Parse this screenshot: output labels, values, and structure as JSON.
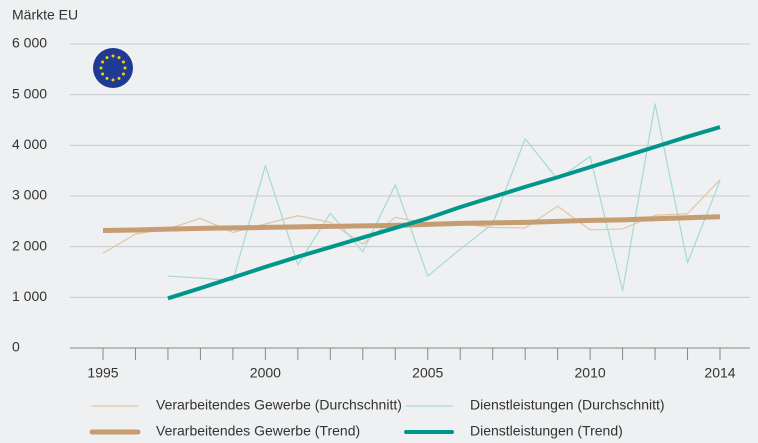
{
  "chart_data": {
    "type": "line",
    "y_label": "Märkte EU",
    "x": [
      1995,
      1996,
      1997,
      1998,
      1999,
      2000,
      2001,
      2002,
      2003,
      2004,
      2005,
      2006,
      2007,
      2008,
      2009,
      2010,
      2011,
      2012,
      2013,
      2014
    ],
    "xlim": [
      1995,
      2014
    ],
    "xticks": [
      1995,
      2000,
      2005,
      2010,
      2014
    ],
    "ylim": [
      0,
      6000
    ],
    "yticks": [
      0,
      {
        "value": 1000,
        "label": "1 000"
      },
      {
        "value": 2000,
        "label": "2 000"
      },
      {
        "value": 3000,
        "label": "3 000"
      },
      {
        "value": 4000,
        "label": "4 000"
      },
      {
        "value": 5000,
        "label": "5 000"
      },
      {
        "value": 6000,
        "label": "6 000"
      }
    ],
    "grid": true,
    "series": [
      {
        "name": "Verarbeitendes Gewerbe (Durchschnitt)",
        "color": "#e2c6a4",
        "width": 1.2,
        "values": [
          1870,
          2250,
          2350,
          2560,
          2280,
          2450,
          2610,
          2480,
          2050,
          2580,
          2460,
          2450,
          2380,
          2370,
          2800,
          2330,
          2350,
          2620,
          2650,
          3320
        ]
      },
      {
        "name": "Dienstleistungen (Durchschnitt)",
        "color": "#a6dad3",
        "width": 1.2,
        "values": [
          null,
          null,
          1420,
          1380,
          1330,
          3600,
          1640,
          2660,
          1900,
          3220,
          1420,
          1950,
          2450,
          4130,
          3330,
          3780,
          1130,
          4820,
          1680,
          3300
        ]
      },
      {
        "name": "Verarbeitendes Gewerbe (Trend)",
        "color": "#c69c73",
        "width": 5,
        "values": [
          2320,
          2330,
          2345,
          2360,
          2370,
          2380,
          2390,
          2400,
          2410,
          2420,
          2440,
          2460,
          2470,
          2480,
          2500,
          2520,
          2530,
          2550,
          2570,
          2590
        ]
      },
      {
        "name": "Dienstleistungen (Trend)",
        "color": "#00968b",
        "width": 4,
        "values": [
          null,
          null,
          980,
          1180,
          1390,
          1600,
          1800,
          1990,
          2180,
          2370,
          2560,
          2780,
          2980,
          3180,
          3370,
          3570,
          3770,
          3970,
          4170,
          4360
        ]
      }
    ]
  }
}
